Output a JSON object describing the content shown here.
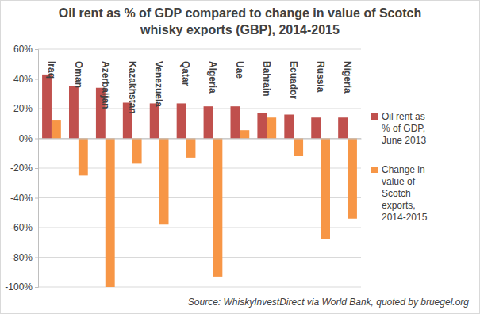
{
  "chart_data": {
    "type": "bar",
    "title": "Oil rent as % of GDP compared to change in value of Scotch whisky exports (GBP), 2014-2015",
    "categories": [
      "Iraq",
      "Oman",
      "Azerbaijan",
      "Kazakhstan",
      "Venezuela",
      "Qatar",
      "Algeria",
      "Uae",
      "Bahrain",
      "Ecuador",
      "Russia",
      "Nigeria"
    ],
    "series": [
      {
        "name": "Oil rent as % of GDP, June 2013",
        "color": "#c0504d",
        "values": [
          43,
          35,
          34,
          24,
          23.5,
          23.5,
          21.5,
          21.5,
          17,
          16,
          14,
          14
        ]
      },
      {
        "name": "Change in value of Scotch exports, 2014-2015",
        "color": "#f79646",
        "values": [
          12.5,
          -25,
          -100,
          -17,
          -58,
          -13,
          -93,
          5.5,
          14,
          -12,
          -68,
          -54
        ]
      }
    ],
    "ylim": [
      -100,
      60
    ],
    "yticks": [
      {
        "value": -100,
        "label": "-100%"
      },
      {
        "value": -80,
        "label": "-80%"
      },
      {
        "value": -60,
        "label": "-60%"
      },
      {
        "value": -40,
        "label": "-40%"
      },
      {
        "value": -20,
        "label": "-20%"
      },
      {
        "value": 0,
        "label": "0%"
      },
      {
        "value": 20,
        "label": "20%"
      },
      {
        "value": 40,
        "label": "40%"
      },
      {
        "value": 60,
        "label": "60%"
      }
    ],
    "grid": true,
    "legend": "right",
    "annotations": [
      "Source: WhiskyInvestDirect via World Bank, quoted by bruegel.org"
    ]
  }
}
